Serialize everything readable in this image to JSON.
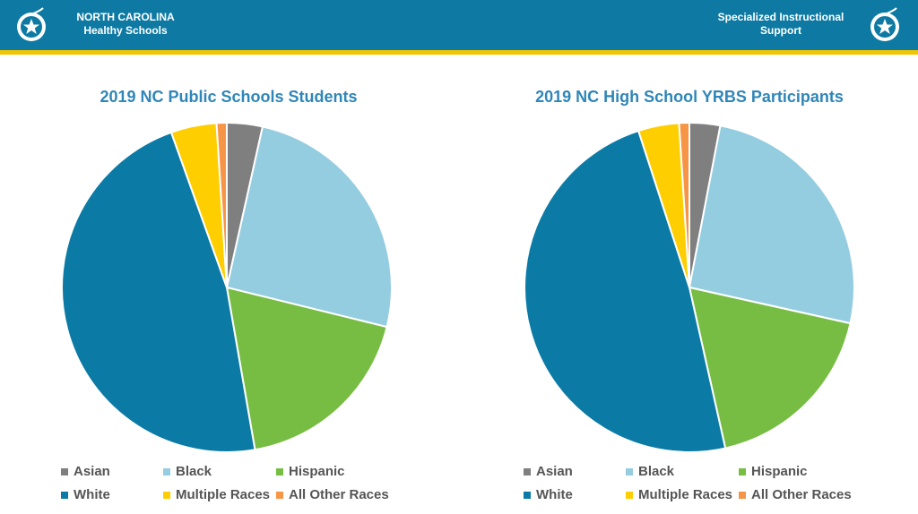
{
  "header": {
    "left_title_line1": "NORTH CAROLINA",
    "left_title_line2": "Healthy Schools",
    "right_title_line1": "Specialized Instructional",
    "right_title_line2": "Support",
    "logo_icon": "apple-star-icon",
    "bar_color": "#0e7aa3",
    "stripe_color": "#f2c500"
  },
  "chart_data": [
    {
      "type": "pie",
      "title": "2019 NC Public Schools Students",
      "categories": [
        "Asian",
        "Black",
        "Hispanic",
        "White",
        "Multiple Races",
        "All Other Races"
      ],
      "values": [
        3.5,
        25.5,
        18.5,
        47.5,
        4.5,
        1.0
      ],
      "colors": [
        "#7f7f7f",
        "#95cde0",
        "#77bd43",
        "#0b7ba6",
        "#fece00",
        "#f79547"
      ],
      "legend_position": "bottom",
      "start_angle_deg": 0
    },
    {
      "type": "pie",
      "title": "2019 NC High School YRBS Participants",
      "categories": [
        "Asian",
        "Black",
        "Hispanic",
        "White",
        "Multiple Races",
        "All Other Races"
      ],
      "values": [
        3.0,
        25.5,
        18.0,
        48.5,
        4.0,
        1.0
      ],
      "colors": [
        "#7f7f7f",
        "#95cde0",
        "#77bd43",
        "#0b7ba6",
        "#fece00",
        "#f79547"
      ],
      "legend_position": "bottom",
      "start_angle_deg": 0
    }
  ]
}
